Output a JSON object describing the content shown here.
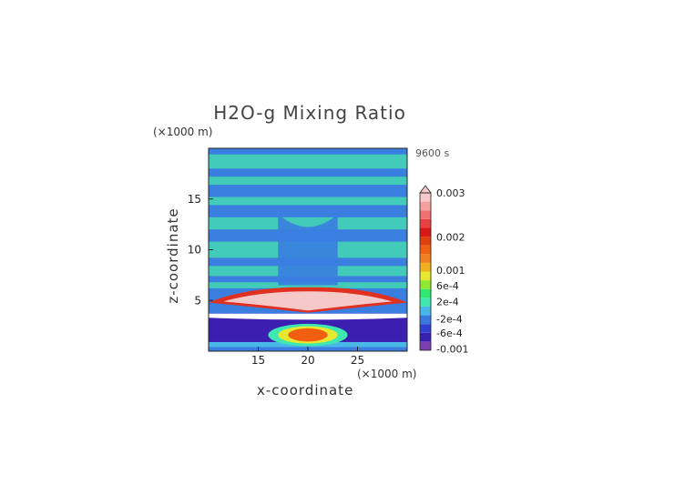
{
  "chart_data": {
    "type": "heatmap",
    "title": "H2O-g Mixing Ratio",
    "xlabel": "x-coordinate",
    "ylabel": "z-coordinate",
    "x_unit": "(×1000 m)",
    "y_unit": "(×1000 m)",
    "time_label": "9600 s",
    "xlim": [
      10,
      30
    ],
    "ylim": [
      0,
      20
    ],
    "x_ticks": [
      "15",
      "20",
      "25"
    ],
    "y_ticks": [
      "5",
      "10",
      "15"
    ],
    "colorbar": {
      "labels": [
        "0.003",
        "0.002",
        "0.001",
        "6e-4",
        "2e-4",
        "-2e-4",
        "-6e-4",
        "-0.001"
      ],
      "colors": [
        "#7b3fb0",
        "#3a1fb0",
        "#2f3fd0",
        "#3a78e0",
        "#49b8e8",
        "#3fe8b0",
        "#30e870",
        "#90e830",
        "#e8e830",
        "#f0b020",
        "#f08020",
        "#f06010",
        "#e04010",
        "#d81818",
        "#e84040",
        "#f07070",
        "#f4a0a0",
        "#f6c8c8"
      ]
    },
    "regions": [
      {
        "label": "upper layers",
        "range_z": [
          6,
          20
        ],
        "pattern": "alternating bands of -2e-4 and 2e-4"
      },
      {
        "label": "moist layer",
        "x_range": [
          10,
          30
        ],
        "z_range": [
          3.8,
          6
        ],
        "value_max": 0.003
      },
      {
        "label": "dry layer",
        "z_range": [
          0.5,
          3.5
        ],
        "value_min": -0.001
      },
      {
        "label": "surface moist core",
        "x_range": [
          17.5,
          22.5
        ],
        "z_range": [
          0.8,
          2.8
        ],
        "value_max": 0.001
      }
    ]
  }
}
